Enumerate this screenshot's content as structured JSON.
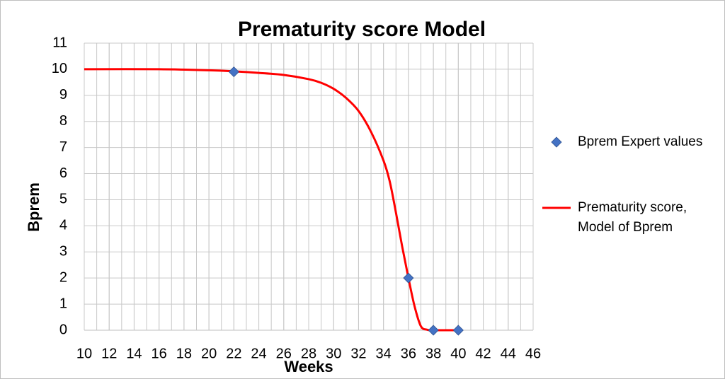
{
  "chart_data": {
    "type": "line",
    "title": "Prematurity score Model",
    "x_label": "Weeks",
    "y_label": "Bprem",
    "xlim": [
      10,
      46
    ],
    "ylim": [
      0,
      11
    ],
    "xticks": [
      10,
      12,
      14,
      16,
      18,
      20,
      22,
      24,
      26,
      28,
      30,
      32,
      34,
      36,
      38,
      40,
      42,
      44,
      46
    ],
    "yticks": [
      0,
      1,
      2,
      3,
      4,
      5,
      6,
      7,
      8,
      9,
      10,
      11
    ],
    "grid": true,
    "xgrid_step": 1,
    "legend": "right",
    "series": [
      {
        "name": "Bprem Expert values",
        "type": "scatter",
        "color": "#4472c4",
        "x": [
          22,
          36,
          38,
          40
        ],
        "y": [
          9.9,
          2,
          0,
          0
        ]
      },
      {
        "name": "Prematurity score, Model of Bprem",
        "type": "line",
        "color": "#ff0000",
        "x": [
          10,
          16,
          20,
          22,
          24,
          26,
          28,
          29,
          30,
          31,
          32,
          33,
          34,
          34.5,
          35,
          35.5,
          36,
          36.5,
          37,
          37.5,
          38,
          40
        ],
        "y": [
          10,
          10,
          9.96,
          9.92,
          9.86,
          9.78,
          9.62,
          9.48,
          9.25,
          8.9,
          8.4,
          7.6,
          6.5,
          5.7,
          4.5,
          3.2,
          2,
          0.9,
          0.15,
          0.02,
          0,
          0
        ]
      }
    ]
  }
}
